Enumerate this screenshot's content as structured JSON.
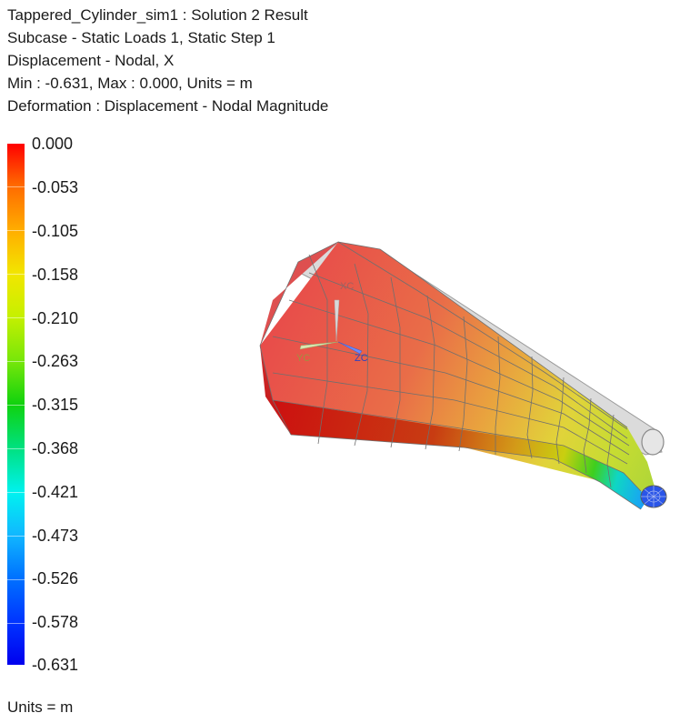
{
  "header": {
    "line1": "Tappered_Cylinder_sim1 : Solution 2 Result",
    "line2": "Subcase - Static Loads 1, Static Step 1",
    "line3": "Displacement - Nodal, X",
    "line4": "Min : -0.631, Max : 0.000, Units = m",
    "line5": "Deformation : Displacement - Nodal Magnitude"
  },
  "legend": {
    "labels": [
      "0.000",
      "-0.053",
      "-0.105",
      "-0.158",
      "-0.210",
      "-0.263",
      "-0.315",
      "-0.368",
      "-0.421",
      "-0.473",
      "-0.526",
      "-0.578",
      "-0.631"
    ],
    "colors": [
      "#ff0000",
      "#0000ee"
    ]
  },
  "triad": {
    "x_label": "XC",
    "y_label": "YC",
    "z_label": "ZC"
  },
  "footer": {
    "units": "Units = m"
  }
}
